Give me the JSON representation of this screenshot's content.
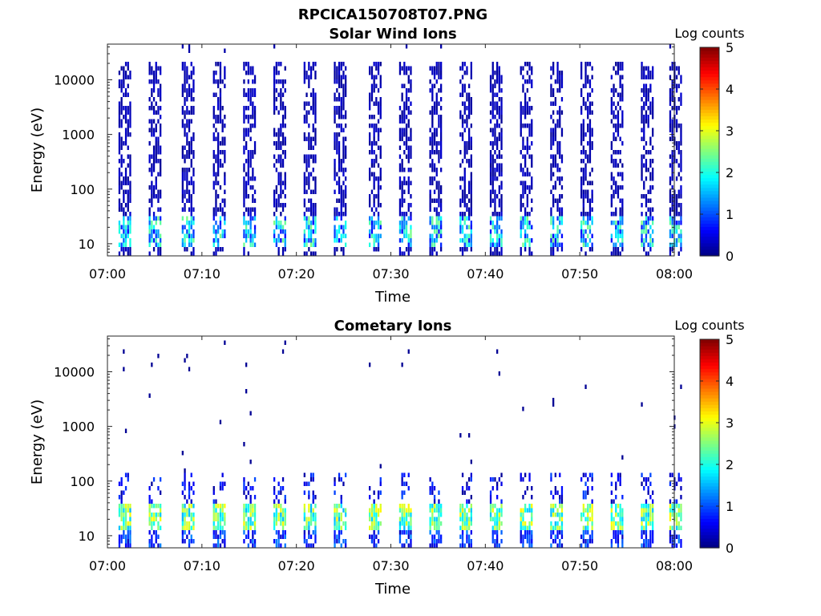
{
  "figure": {
    "title": "RPCICA150708T07.PNG"
  },
  "chart_data": [
    {
      "type": "heatmap",
      "title": "Solar Wind Ions",
      "xlabel": "Time",
      "ylabel": "Energy (eV)",
      "x_ticks": [
        "07:00",
        "07:10",
        "07:20",
        "07:30",
        "07:40",
        "07:50",
        "08:00"
      ],
      "y_ticks": [
        "10",
        "100",
        "1000",
        "10000"
      ],
      "xlim": [
        "07:00",
        "08:00"
      ],
      "ylim": [
        6,
        45000
      ],
      "y_scale": "log",
      "colorbar": {
        "label": "Log counts",
        "ticks": [
          "0",
          "1",
          "2",
          "3",
          "4",
          "5"
        ],
        "range": [
          0,
          5
        ],
        "colormap": "jet"
      },
      "sweep_times_min": [
        1.4,
        4.6,
        8.1,
        11.4,
        14.6,
        17.8,
        21.0,
        24.2,
        27.9,
        31.1,
        34.3,
        37.5,
        40.7,
        43.9,
        47.1,
        50.3,
        53.5,
        56.7,
        59.7
      ],
      "summary": "Dense band of low counts (log counts 0-0.5) across 30 eV-20000 eV in each sweep; higher counts (log counts 1-2.5) at 10-30 eV"
    },
    {
      "type": "heatmap",
      "title": "Cometary Ions",
      "xlabel": "Time",
      "ylabel": "Energy (eV)",
      "x_ticks": [
        "07:00",
        "07:10",
        "07:20",
        "07:30",
        "07:40",
        "07:50",
        "08:00"
      ],
      "y_ticks": [
        "10",
        "100",
        "1000",
        "10000"
      ],
      "xlim": [
        "07:00",
        "08:00"
      ],
      "ylim": [
        6,
        45000
      ],
      "y_scale": "log",
      "colorbar": {
        "label": "Log counts",
        "ticks": [
          "0",
          "1",
          "2",
          "3",
          "4",
          "5"
        ],
        "range": [
          0,
          5
        ],
        "colormap": "jet"
      },
      "sweep_times_min": [
        1.4,
        4.6,
        8.1,
        11.4,
        14.6,
        17.8,
        21.0,
        24.2,
        27.9,
        31.1,
        34.3,
        37.5,
        40.7,
        43.9,
        47.1,
        50.3,
        53.5,
        56.7,
        59.7
      ],
      "summary": "Peak counts (log counts 2-3) at 10-40 eV; sparse low counts up to ~10000 eV"
    }
  ]
}
